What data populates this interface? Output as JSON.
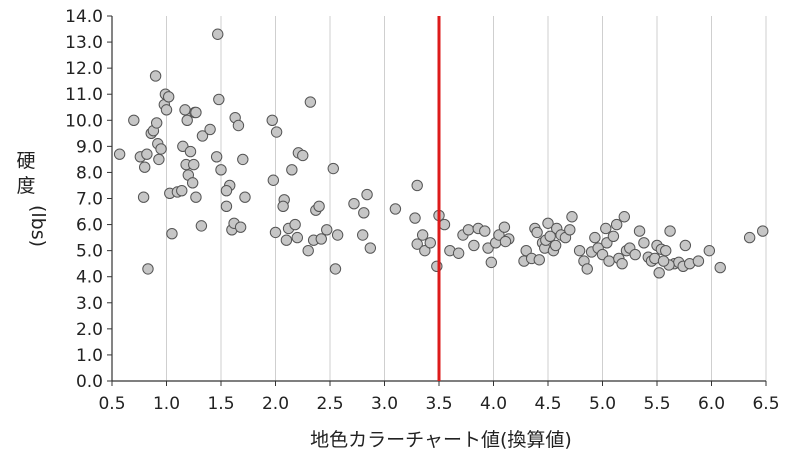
{
  "chart_data": {
    "type": "scatter",
    "xlabel": "地色カラーチャート値(換算値)",
    "ylabel_chars": [
      "硬",
      "度"
    ],
    "ylabel_unit": "(lbs)",
    "xlim": [
      0.5,
      6.5
    ],
    "ylim": [
      0.0,
      14.0
    ],
    "x_ticks": [
      "0.5",
      "1.0",
      "1.5",
      "2.0",
      "2.5",
      "3.0",
      "3.5",
      "4.0",
      "4.5",
      "5.0",
      "5.5",
      "6.0",
      "6.5"
    ],
    "y_ticks": [
      "0.0",
      "1.0",
      "2.0",
      "3.0",
      "4.0",
      "5.0",
      "6.0",
      "7.0",
      "8.0",
      "9.0",
      "10.0",
      "11.0",
      "12.0",
      "13.0",
      "14.0"
    ],
    "grid": "vertical",
    "threshold_line": {
      "x": 3.5,
      "color": "#dd1a1a"
    },
    "marker_fill": "#c6c6c6",
    "marker_stroke": "#555555",
    "points": [
      [
        0.57,
        8.7
      ],
      [
        0.7,
        10.0
      ],
      [
        0.76,
        8.6
      ],
      [
        0.8,
        8.2
      ],
      [
        0.82,
        8.7
      ],
      [
        0.79,
        7.05
      ],
      [
        0.83,
        4.3
      ],
      [
        0.86,
        9.5
      ],
      [
        0.88,
        9.6
      ],
      [
        0.9,
        11.7
      ],
      [
        0.91,
        9.9
      ],
      [
        0.92,
        9.1
      ],
      [
        0.93,
        8.5
      ],
      [
        0.95,
        8.9
      ],
      [
        0.98,
        10.6
      ],
      [
        0.99,
        11.0
      ],
      [
        1.0,
        10.4
      ],
      [
        1.02,
        10.9
      ],
      [
        1.03,
        7.2
      ],
      [
        1.05,
        5.65
      ],
      [
        1.1,
        7.25
      ],
      [
        1.14,
        7.3
      ],
      [
        1.15,
        9.0
      ],
      [
        1.17,
        10.4
      ],
      [
        1.18,
        8.3
      ],
      [
        1.19,
        10.0
      ],
      [
        1.2,
        7.9
      ],
      [
        1.22,
        8.8
      ],
      [
        1.24,
        7.6
      ],
      [
        1.25,
        8.3
      ],
      [
        1.26,
        10.3
      ],
      [
        1.27,
        7.05
      ],
      [
        1.27,
        10.3
      ],
      [
        1.32,
        5.95
      ],
      [
        1.33,
        9.4
      ],
      [
        1.4,
        9.65
      ],
      [
        1.46,
        8.6
      ],
      [
        1.47,
        13.3
      ],
      [
        1.48,
        10.8
      ],
      [
        1.5,
        8.1
      ],
      [
        1.55,
        6.7
      ],
      [
        1.58,
        7.5
      ],
      [
        1.6,
        5.8
      ],
      [
        1.62,
        6.05
      ],
      [
        1.63,
        10.1
      ],
      [
        1.66,
        9.8
      ],
      [
        1.68,
        5.9
      ],
      [
        1.7,
        8.5
      ],
      [
        1.72,
        7.05
      ],
      [
        1.97,
        10.0
      ],
      [
        1.98,
        7.7
      ],
      [
        2.0,
        5.7
      ],
      [
        2.01,
        9.55
      ],
      [
        2.08,
        6.95
      ],
      [
        2.1,
        5.4
      ],
      [
        2.12,
        5.85
      ],
      [
        2.15,
        8.1
      ],
      [
        2.18,
        6.0
      ],
      [
        2.2,
        5.5
      ],
      [
        2.21,
        8.75
      ],
      [
        2.25,
        8.65
      ],
      [
        2.3,
        5.0
      ],
      [
        2.32,
        10.7
      ],
      [
        2.35,
        5.4
      ],
      [
        2.37,
        6.55
      ],
      [
        2.4,
        6.7
      ],
      [
        2.42,
        5.45
      ],
      [
        2.47,
        5.8
      ],
      [
        2.53,
        8.15
      ],
      [
        2.55,
        4.3
      ],
      [
        2.57,
        5.6
      ],
      [
        2.72,
        6.8
      ],
      [
        2.8,
        5.6
      ],
      [
        2.81,
        6.45
      ],
      [
        2.84,
        7.15
      ],
      [
        2.87,
        5.1
      ],
      [
        3.1,
        6.6
      ],
      [
        3.28,
        6.25
      ],
      [
        3.3,
        7.5
      ],
      [
        3.3,
        5.25
      ],
      [
        3.35,
        5.6
      ],
      [
        3.37,
        5.0
      ],
      [
        3.42,
        5.3
      ],
      [
        3.48,
        4.4
      ],
      [
        3.5,
        6.35
      ],
      [
        3.55,
        6.0
      ],
      [
        3.6,
        5.0
      ],
      [
        3.68,
        4.9
      ],
      [
        3.72,
        5.6
      ],
      [
        3.77,
        5.8
      ],
      [
        3.82,
        5.2
      ],
      [
        3.86,
        5.85
      ],
      [
        3.92,
        5.75
      ],
      [
        3.95,
        5.1
      ],
      [
        3.98,
        4.55
      ],
      [
        4.02,
        5.3
      ],
      [
        4.05,
        5.6
      ],
      [
        4.1,
        5.9
      ],
      [
        4.14,
        5.45
      ],
      [
        4.28,
        4.6
      ],
      [
        4.3,
        5.0
      ],
      [
        4.35,
        4.7
      ],
      [
        4.38,
        5.85
      ],
      [
        4.4,
        5.7
      ],
      [
        4.42,
        4.65
      ],
      [
        4.45,
        5.3
      ],
      [
        4.47,
        5.1
      ],
      [
        4.48,
        5.4
      ],
      [
        4.5,
        6.05
      ],
      [
        4.52,
        5.55
      ],
      [
        4.55,
        5.0
      ],
      [
        4.58,
        5.85
      ],
      [
        4.62,
        5.6
      ],
      [
        4.66,
        5.5
      ],
      [
        4.7,
        5.8
      ],
      [
        4.72,
        6.3
      ],
      [
        4.79,
        5.0
      ],
      [
        4.83,
        4.6
      ],
      [
        4.86,
        4.3
      ],
      [
        4.9,
        4.95
      ],
      [
        4.93,
        5.5
      ],
      [
        4.96,
        5.1
      ],
      [
        5.0,
        4.85
      ],
      [
        5.03,
        5.85
      ],
      [
        5.04,
        5.3
      ],
      [
        5.06,
        4.6
      ],
      [
        5.1,
        5.55
      ],
      [
        5.13,
        6.0
      ],
      [
        5.15,
        4.7
      ],
      [
        5.18,
        4.5
      ],
      [
        5.2,
        6.3
      ],
      [
        5.22,
        5.0
      ],
      [
        5.25,
        5.1
      ],
      [
        5.3,
        4.85
      ],
      [
        5.34,
        5.75
      ],
      [
        5.38,
        5.3
      ],
      [
        5.42,
        4.75
      ],
      [
        5.45,
        4.6
      ],
      [
        5.48,
        4.7
      ],
      [
        5.5,
        5.2
      ],
      [
        5.52,
        4.15
      ],
      [
        5.54,
        5.05
      ],
      [
        5.58,
        5.0
      ],
      [
        5.62,
        5.75
      ],
      [
        5.66,
        4.5
      ],
      [
        5.7,
        4.55
      ],
      [
        5.74,
        4.4
      ],
      [
        5.76,
        5.2
      ],
      [
        5.8,
        4.5
      ],
      [
        5.88,
        4.6
      ],
      [
        5.98,
        5.0
      ],
      [
        6.08,
        4.35
      ],
      [
        6.35,
        5.5
      ],
      [
        6.47,
        5.75
      ],
      [
        5.61,
        4.45
      ],
      [
        5.56,
        4.6
      ],
      [
        4.57,
        5.2
      ],
      [
        4.11,
        5.35
      ],
      [
        2.07,
        6.7
      ],
      [
        1.55,
        7.3
      ]
    ]
  }
}
